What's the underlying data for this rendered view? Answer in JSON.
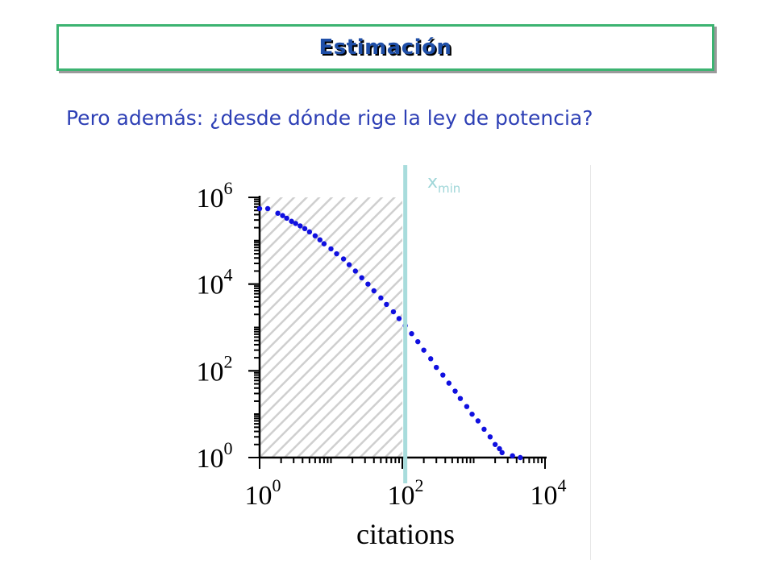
{
  "slide": {
    "title": "Estimación",
    "subtitle": "Pero además: ¿desde dónde rige la ley de potencia?"
  },
  "annotation": {
    "xmin_main": "x",
    "xmin_sub": "min"
  },
  "colors": {
    "title_text": "#1f4fa8",
    "title_border": "#3cb371",
    "subtitle_text": "#2d3fb5",
    "points": "#1010e0",
    "xmin_line": "#a8dcdc",
    "hatch": "#cfcfcf"
  },
  "chart_data": {
    "type": "scatter",
    "xlabel": "citations",
    "ylabel": "",
    "x_scale": "log",
    "y_scale": "log",
    "xlim": [
      1,
      10000
    ],
    "ylim": [
      1,
      1000000
    ],
    "xticks": [
      {
        "base": "10",
        "exp": "0",
        "value": 1
      },
      {
        "base": "10",
        "exp": "2",
        "value": 100
      },
      {
        "base": "10",
        "exp": "4",
        "value": 10000
      }
    ],
    "yticks": [
      {
        "base": "10",
        "exp": "0",
        "value": 1
      },
      {
        "base": "10",
        "exp": "2",
        "value": 100
      },
      {
        "base": "10",
        "exp": "4",
        "value": 10000
      },
      {
        "base": "10",
        "exp": "6",
        "value": 1000000
      }
    ],
    "shaded_region": {
      "x_from": 1,
      "x_to": 100,
      "y_to": 1000000,
      "pattern": "diagonal-hatch"
    },
    "xmin": 110,
    "points": [
      [
        1,
        550000
      ],
      [
        1.3,
        550000
      ],
      [
        1.8,
        430000
      ],
      [
        2.1,
        380000
      ],
      [
        2.4,
        330000
      ],
      [
        2.8,
        280000
      ],
      [
        3.2,
        250000
      ],
      [
        3.7,
        220000
      ],
      [
        4.3,
        190000
      ],
      [
        5,
        160000
      ],
      [
        6,
        130000
      ],
      [
        7,
        105000
      ],
      [
        8,
        85000
      ],
      [
        10,
        65000
      ],
      [
        12,
        50000
      ],
      [
        15,
        38000
      ],
      [
        18,
        28000
      ],
      [
        22,
        20000
      ],
      [
        27,
        14000
      ],
      [
        33,
        10000
      ],
      [
        40,
        7000
      ],
      [
        50,
        4800
      ],
      [
        60,
        3400
      ],
      [
        75,
        2300
      ],
      [
        90,
        1600
      ],
      [
        110,
        1100
      ],
      [
        135,
        720
      ],
      [
        165,
        470
      ],
      [
        200,
        300
      ],
      [
        250,
        190
      ],
      [
        300,
        120
      ],
      [
        370,
        80
      ],
      [
        450,
        52
      ],
      [
        550,
        34
      ],
      [
        650,
        23
      ],
      [
        800,
        15
      ],
      [
        950,
        10
      ],
      [
        1150,
        7
      ],
      [
        1400,
        4.5
      ],
      [
        1700,
        3
      ],
      [
        2000,
        2
      ],
      [
        2300,
        1.6
      ],
      [
        2500,
        1.3
      ],
      [
        3500,
        1.1
      ],
      [
        4500,
        1
      ]
    ]
  }
}
